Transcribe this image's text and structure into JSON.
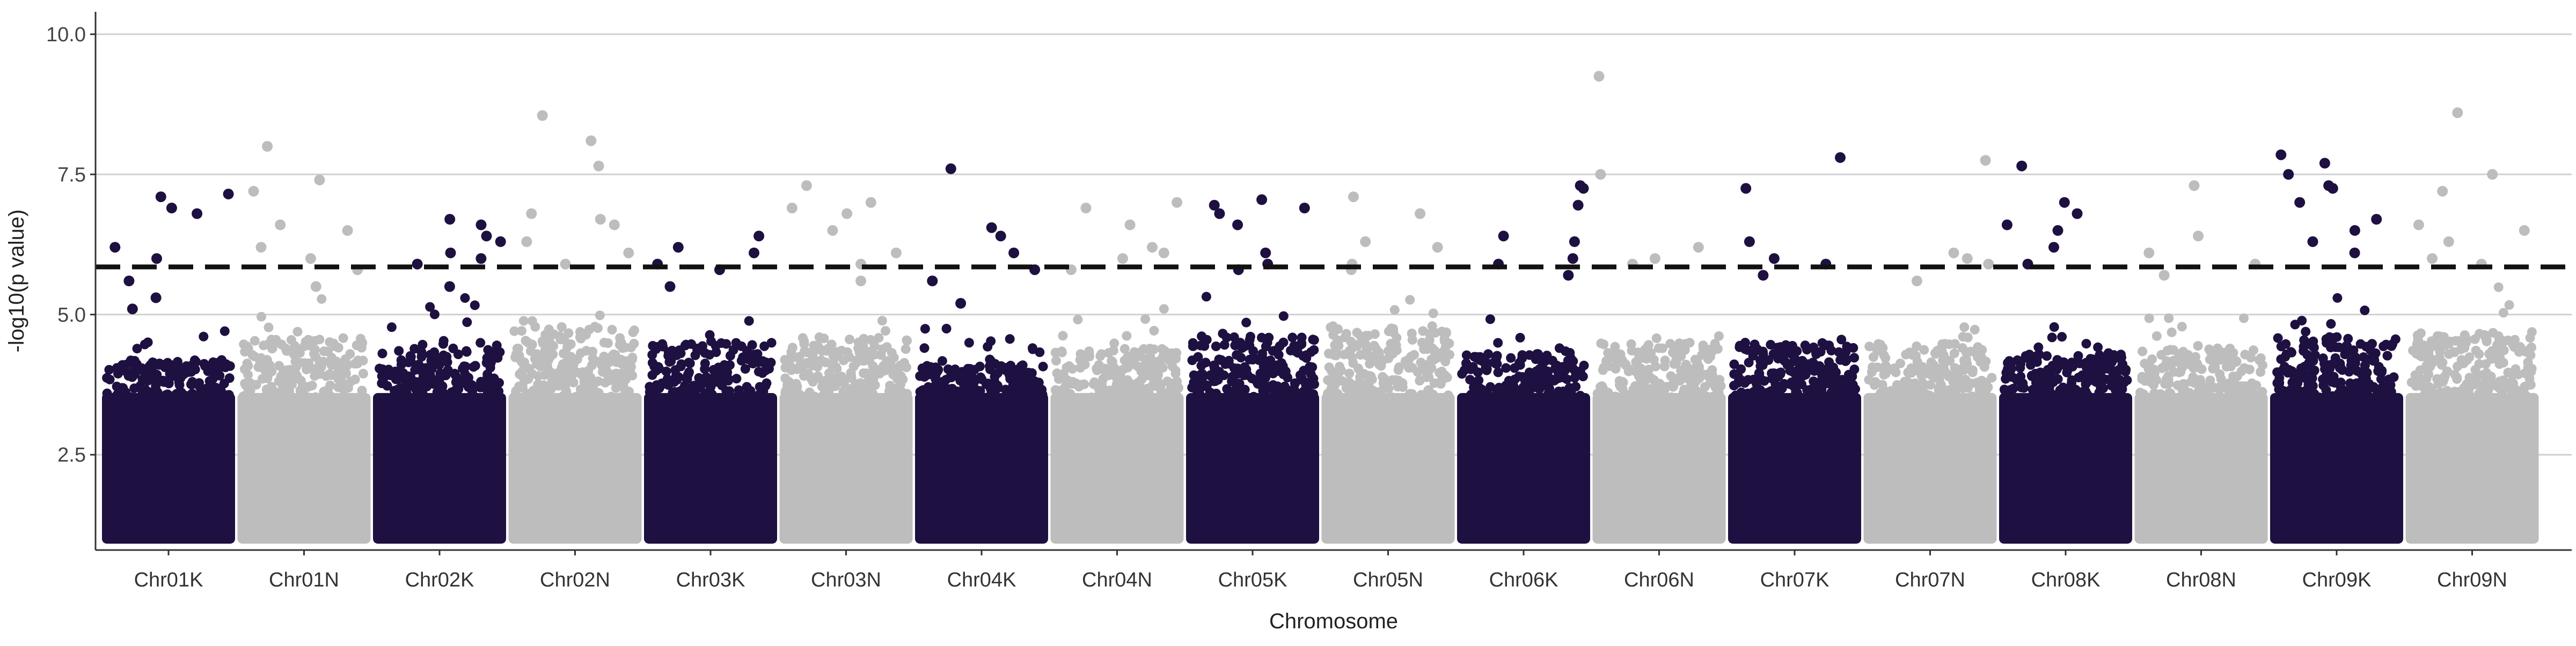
{
  "chart_data": {
    "type": "scatter",
    "subtype": "manhattan",
    "title": "",
    "xlabel": "Chromosome",
    "ylabel": "-log10(p value)",
    "ylim": [
      0.8,
      10.4
    ],
    "yticks": [
      2.5,
      5.0,
      7.5,
      10.0
    ],
    "ytick_labels": [
      "2.5",
      "5.0",
      "7.5",
      "10.0"
    ],
    "grid": "horizontal major",
    "legend": "none",
    "threshold": {
      "value": 5.85,
      "style": "dashed",
      "color": "#111111"
    },
    "point_floor": 1.0,
    "colors": {
      "odd": "#1e1040",
      "even": "#bdbdbd"
    },
    "categories": [
      "Chr01K",
      "Chr01N",
      "Chr02K",
      "Chr02N",
      "Chr03K",
      "Chr03N",
      "Chr04K",
      "Chr04N",
      "Chr05K",
      "Chr05N",
      "Chr06K",
      "Chr06N",
      "Chr07K",
      "Chr07N",
      "Chr08K",
      "Chr08N",
      "Chr09K",
      "Chr09N"
    ],
    "series": [
      {
        "chromosome": "Chr01K",
        "color": "#1e1040",
        "approx_dense_max": 4.2,
        "top_points": [
          7.1,
          6.9,
          6.8,
          7.15,
          6.2,
          6.0,
          5.6,
          5.3,
          5.1
        ]
      },
      {
        "chromosome": "Chr01N",
        "color": "#bdbdbd",
        "approx_dense_max": 4.6,
        "top_points": [
          8.0,
          7.4,
          7.2,
          6.6,
          6.5,
          6.2,
          6.0,
          5.8,
          5.5
        ]
      },
      {
        "chromosome": "Chr02K",
        "color": "#1e1040",
        "approx_dense_max": 4.5,
        "top_points": [
          6.7,
          6.6,
          6.4,
          6.3,
          6.1,
          6.0,
          5.9,
          5.5
        ]
      },
      {
        "chromosome": "Chr02N",
        "color": "#bdbdbd",
        "approx_dense_max": 4.8,
        "top_points": [
          8.55,
          8.1,
          7.65,
          6.8,
          6.7,
          6.6,
          6.3,
          6.1,
          5.9
        ]
      },
      {
        "chromosome": "Chr03K",
        "color": "#1e1040",
        "approx_dense_max": 4.5,
        "top_points": [
          6.4,
          6.2,
          6.1,
          5.9,
          5.8,
          5.5
        ]
      },
      {
        "chromosome": "Chr03N",
        "color": "#bdbdbd",
        "approx_dense_max": 4.6,
        "top_points": [
          7.3,
          7.0,
          6.9,
          6.8,
          6.5,
          6.1,
          5.9,
          5.6
        ]
      },
      {
        "chromosome": "Chr04K",
        "color": "#1e1040",
        "approx_dense_max": 4.1,
        "top_points": [
          7.6,
          6.55,
          6.4,
          6.1,
          5.8,
          5.6,
          5.2
        ]
      },
      {
        "chromosome": "Chr04N",
        "color": "#bdbdbd",
        "approx_dense_max": 4.4,
        "top_points": [
          7.0,
          6.9,
          6.6,
          6.2,
          6.1,
          6.0,
          5.8
        ]
      },
      {
        "chromosome": "Chr05K",
        "color": "#1e1040",
        "approx_dense_max": 4.6,
        "top_points": [
          7.05,
          6.95,
          6.9,
          6.8,
          6.6,
          6.1,
          5.9,
          5.8
        ]
      },
      {
        "chromosome": "Chr05N",
        "color": "#bdbdbd",
        "approx_dense_max": 4.8,
        "top_points": [
          7.1,
          6.8,
          6.3,
          6.2,
          5.9,
          5.8
        ]
      },
      {
        "chromosome": "Chr06K",
        "color": "#1e1040",
        "approx_dense_max": 4.3,
        "top_points": [
          7.3,
          7.25,
          6.95,
          6.4,
          6.3,
          6.0,
          5.9,
          5.7
        ]
      },
      {
        "chromosome": "Chr06N",
        "color": "#bdbdbd",
        "approx_dense_max": 4.5,
        "top_points": [
          9.25,
          7.5,
          6.2,
          6.0,
          5.9
        ]
      },
      {
        "chromosome": "Chr07K",
        "color": "#1e1040",
        "approx_dense_max": 4.5,
        "top_points": [
          7.8,
          7.25,
          6.3,
          6.0,
          5.9,
          5.7
        ]
      },
      {
        "chromosome": "Chr07N",
        "color": "#bdbdbd",
        "approx_dense_max": 4.5,
        "top_points": [
          7.75,
          6.1,
          6.0,
          5.9,
          5.6
        ]
      },
      {
        "chromosome": "Chr08K",
        "color": "#1e1040",
        "approx_dense_max": 4.3,
        "top_points": [
          7.65,
          7.0,
          6.8,
          6.6,
          6.5,
          6.2,
          5.9
        ]
      },
      {
        "chromosome": "Chr08N",
        "color": "#bdbdbd",
        "approx_dense_max": 4.4,
        "top_points": [
          7.3,
          6.4,
          6.1,
          5.9,
          5.7
        ]
      },
      {
        "chromosome": "Chr09K",
        "color": "#1e1040",
        "approx_dense_max": 4.6,
        "top_points": [
          7.85,
          7.7,
          7.5,
          7.3,
          7.25,
          7.0,
          6.7,
          6.5,
          6.3,
          6.1
        ]
      },
      {
        "chromosome": "Chr09N",
        "color": "#bdbdbd",
        "approx_dense_max": 4.7,
        "top_points": [
          8.6,
          7.5,
          7.2,
          6.6,
          6.5,
          6.3,
          6.0,
          5.9
        ]
      }
    ]
  }
}
